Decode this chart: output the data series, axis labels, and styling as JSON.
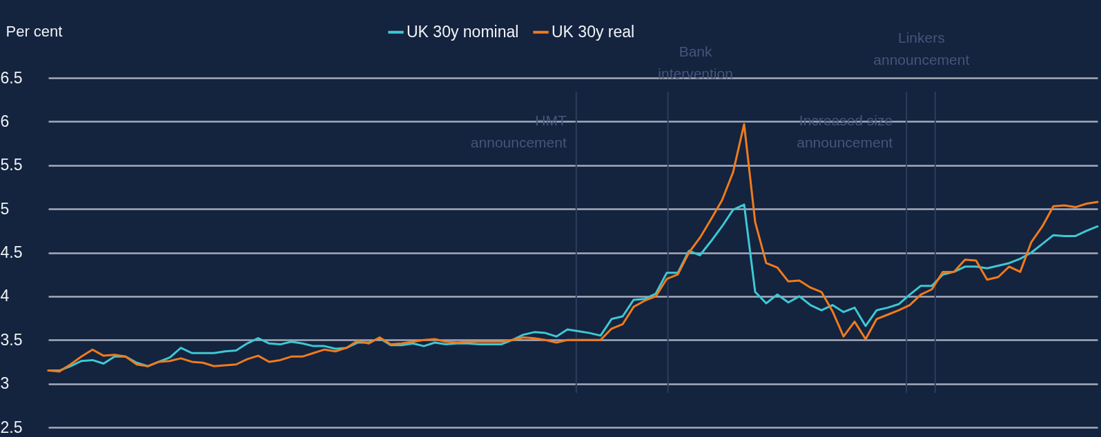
{
  "chart_data": {
    "type": "line",
    "ylabel": "Per cent",
    "categories": [
      null,
      null,
      null,
      null,
      null,
      null,
      null,
      null,
      null,
      null,
      null,
      null,
      null,
      null,
      null,
      null,
      null,
      null,
      null,
      null,
      null,
      null,
      null,
      null,
      null,
      null,
      null,
      null,
      null,
      null,
      null,
      null,
      null,
      null,
      null,
      null,
      null,
      null,
      null,
      null,
      null,
      null,
      null,
      null,
      null,
      null,
      null,
      null,
      null,
      null,
      null,
      null,
      null,
      null,
      null,
      null,
      null,
      null,
      null,
      null,
      null,
      null,
      null,
      null,
      null,
      null,
      null,
      null,
      null,
      null,
      null,
      null,
      null,
      null,
      null,
      null,
      null,
      null,
      null,
      null,
      null,
      null,
      null,
      null,
      null,
      null,
      null,
      null,
      null,
      null,
      null,
      null,
      null,
      null,
      null,
      null
    ],
    "series": [
      {
        "name": "UK 30y nominal",
        "color": "#3ec8d4",
        "values": [
          3.15,
          3.15,
          3.2,
          3.26,
          3.27,
          3.23,
          3.31,
          3.31,
          3.24,
          3.2,
          3.25,
          3.3,
          3.41,
          3.35,
          3.35,
          3.35,
          3.37,
          3.38,
          3.46,
          3.52,
          3.46,
          3.45,
          3.48,
          3.46,
          3.43,
          3.43,
          3.4,
          3.41,
          3.47,
          3.47,
          3.52,
          3.44,
          3.44,
          3.46,
          3.43,
          3.47,
          3.45,
          3.46,
          3.46,
          3.45,
          3.45,
          3.45,
          3.5,
          3.56,
          3.59,
          3.58,
          3.54,
          3.62,
          3.6,
          3.58,
          3.55,
          3.74,
          3.77,
          3.96,
          3.97,
          4.03,
          4.27,
          4.27,
          4.52,
          4.47,
          4.63,
          4.8,
          4.99,
          5.05,
          4.05,
          3.92,
          4.02,
          3.93,
          4.0,
          3.9,
          3.84,
          3.9,
          3.82,
          3.87,
          3.66,
          3.84,
          3.87,
          3.91,
          4.02,
          4.12,
          4.12,
          4.25,
          4.28,
          4.34,
          4.34,
          4.32,
          4.35,
          4.38,
          4.43,
          4.5,
          4.6,
          4.7,
          4.69,
          4.69,
          4.75,
          4.8
        ]
      },
      {
        "name": "UK 30y real",
        "color": "#f07b1c",
        "values": [
          3.15,
          3.14,
          3.22,
          3.31,
          3.39,
          3.32,
          3.33,
          3.31,
          3.22,
          3.2,
          3.25,
          3.26,
          3.29,
          3.25,
          3.24,
          3.2,
          3.21,
          3.22,
          3.28,
          3.32,
          3.25,
          3.27,
          3.31,
          3.31,
          3.35,
          3.39,
          3.37,
          3.41,
          3.49,
          3.46,
          3.53,
          3.45,
          3.46,
          3.48,
          3.5,
          3.51,
          3.48,
          3.47,
          3.48,
          3.48,
          3.48,
          3.48,
          3.5,
          3.53,
          3.52,
          3.5,
          3.47,
          3.5,
          3.5,
          3.5,
          3.5,
          3.63,
          3.68,
          3.88,
          3.95,
          4.0,
          4.2,
          4.25,
          4.5,
          4.67,
          4.88,
          5.1,
          5.42,
          5.97,
          4.85,
          4.38,
          4.33,
          4.17,
          4.18,
          4.1,
          4.05,
          3.83,
          3.54,
          3.71,
          3.51,
          3.74,
          3.79,
          3.84,
          3.9,
          4.02,
          4.08,
          4.28,
          4.28,
          4.42,
          4.41,
          4.19,
          4.22,
          4.34,
          4.28,
          4.62,
          4.8,
          5.03,
          5.04,
          5.02,
          5.06,
          5.08
        ]
      }
    ],
    "ylim": [
      2.5,
      6.5
    ],
    "yticks": [
      2.5,
      3,
      3.5,
      4,
      4.5,
      5,
      5.5,
      6,
      6.5
    ],
    "grid": "y",
    "legend": "top",
    "annotations": [
      "HMT announcement",
      "Bank intervention",
      "Increased size announcement",
      "Linkers announcement"
    ]
  }
}
